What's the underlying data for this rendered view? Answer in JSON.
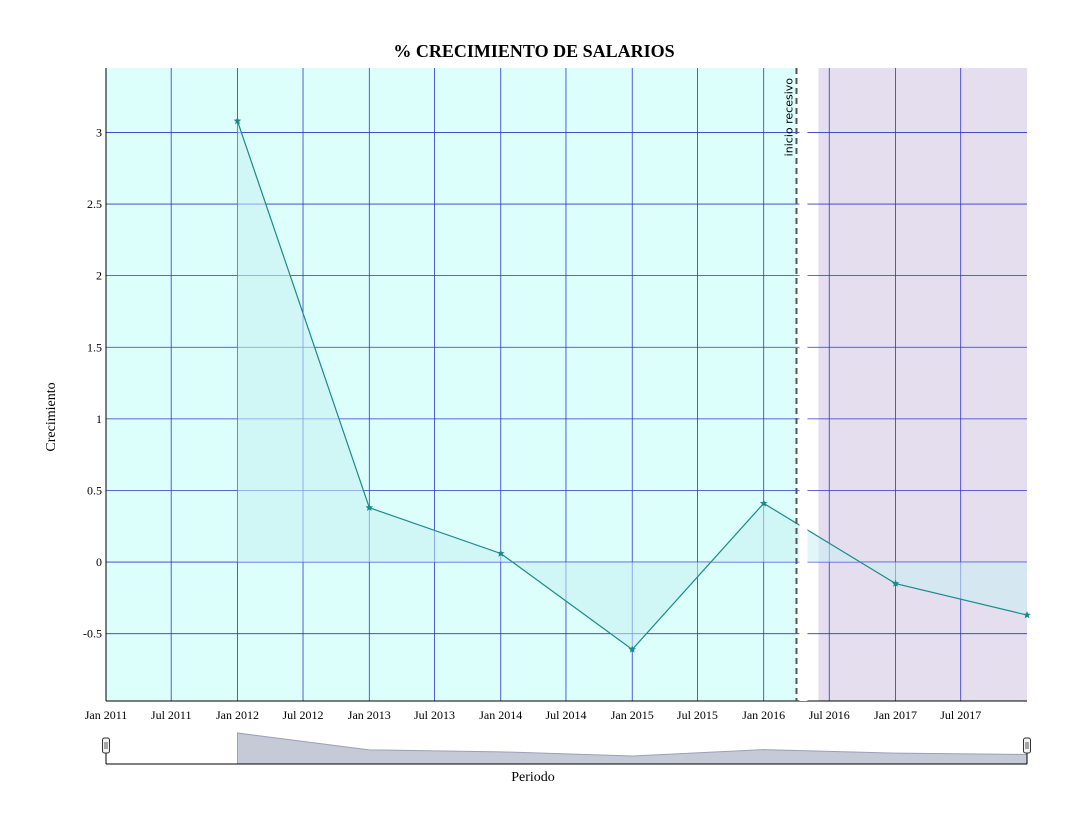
{
  "chart_data": {
    "type": "area",
    "title": "% CRECIMIENTO DE SALARIOS",
    "xlabel": "Periodo",
    "ylabel": "Crecimiento",
    "x_ticks": [
      "Jan 2011",
      "Jul 2011",
      "Jan 2012",
      "Jul 2012",
      "Jan 2013",
      "Jul 2013",
      "Jan 2014",
      "Jul 2014",
      "Jan 2015",
      "Jul 2015",
      "Jan 2016",
      "Jul 2016",
      "Jan 2017",
      "Jul 2017"
    ],
    "y_ticks": [
      "3",
      "2.5",
      "2",
      "1.5",
      "1",
      "0.5",
      "0",
      "-0.5"
    ],
    "ylim": [
      -0.97,
      3.45
    ],
    "xlim": [
      "2011-01-01",
      "2018-01-01"
    ],
    "grid": true,
    "series": [
      {
        "x": [
          "2012-01-01",
          "2013-01-01",
          "2014-01-01",
          "2015-01-01",
          "2016-01-01",
          "2017-01-01",
          "2018-01-01"
        ],
        "values": [
          3.08,
          0.38,
          0.06,
          -0.61,
          0.41,
          -0.15,
          -0.37
        ]
      }
    ],
    "bands": [
      {
        "from": "2011-01-01",
        "to": "2016-04-01",
        "color": "#dcfffb"
      },
      {
        "from": "2016-06-01",
        "to": "2018-01-01",
        "color": "#e4deef"
      }
    ],
    "annotation": {
      "x": "2016-04-01",
      "label": "inicio recesivo"
    },
    "colors": {
      "line": "#1a8a8a",
      "fill": "#c8eef2",
      "grid": "#3333cc",
      "navigator": "#9aa0b8"
    }
  }
}
